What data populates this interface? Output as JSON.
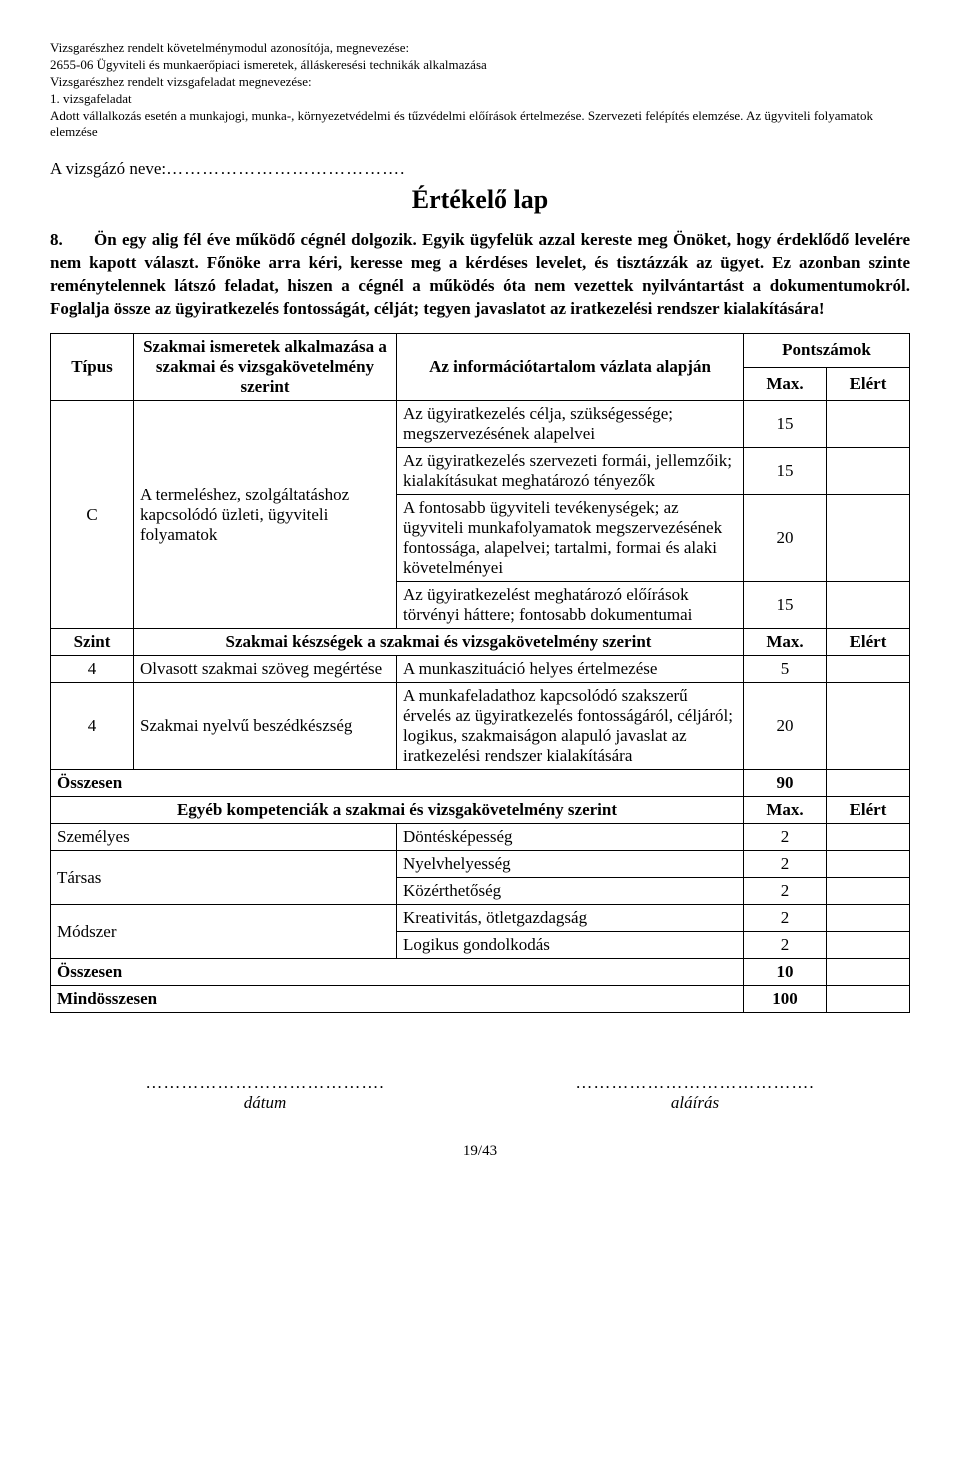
{
  "header": {
    "l1": "Vizsgarészhez rendelt követelménymodul azonosítója, megnevezése:",
    "l2": "2655-06 Ügyviteli és munkaerőpiaci ismeretek, álláskeresési technikák alkalmazása",
    "l3": "Vizsgarészhez rendelt vizsgafeladat megnevezése:",
    "l4": "1. vizsgafeladat",
    "l5": "Adott vállalkozás esetén a munkajogi, munka-, környezetvédelmi és tűzvédelmi előírások értelmezése. Szervezeti felépítés elemzése. Az ügyviteli folyamatok elemzése"
  },
  "examinee_label": "A vizsgázó neve:",
  "dots": "………………………………….",
  "title": "Értékelő lap",
  "question": {
    "num": "8.",
    "text": "Ön egy alig fél éve működő cégnél dolgozik. Egyik ügyfelük azzal kereste meg Önöket, hogy érdeklődő levelére nem kapott választ. Főnöke arra kéri, keresse meg a kérdéses levelet, és tisztázzák az ügyet. Ez azonban szinte reménytelennek látszó feladat, hiszen a cégnél a működés óta nem vezettek nyilvántartást a dokumentumokról. Foglalja össze az ügyiratkezelés fontosságát, célját; tegyen javaslatot az iratkezelési rendszer kialakítására!"
  },
  "table": {
    "head": {
      "type": "Típus",
      "skill": "Szakmai ismeretek alkalmazása a szakmai és vizsgakövetelmény szerint",
      "info": "Az információtartalom vázlata alapján",
      "points": "Pontszámok",
      "max": "Max.",
      "score": "Elért"
    },
    "knowledge": {
      "type": "C",
      "skill": "A termeléshez, szolgáltatáshoz kapcsolódó üzleti, ügyviteli folyamatok",
      "rows": [
        {
          "info": "Az ügyiratkezelés célja, szükségessége; megszervezésének alapelvei",
          "max": "15"
        },
        {
          "info": "Az ügyiratkezelés szervezeti formái, jellemzőik; kialakításukat meghatározó tényezők",
          "max": "15"
        },
        {
          "info": "A fontosabb ügyviteli tevékenységek; az ügyviteli munkafolyamatok megszervezésének fontossága, alapelvei; tartalmi, formai és alaki követelményei",
          "max": "20"
        },
        {
          "info": "Az ügyiratkezelést meghatározó előírások törvényi háttere; fontosabb dokumentumai",
          "max": "15"
        }
      ]
    },
    "skills_header": {
      "szint": "Szint",
      "label": "Szakmai készségek a szakmai és vizsgakövetelmény szerint",
      "max": "Max.",
      "score": "Elért"
    },
    "skills": [
      {
        "szint": "4",
        "skill": "Olvasott szakmai szöveg megértése",
        "info": "A munkaszituáció helyes értelmezése",
        "max": "5"
      },
      {
        "szint": "4",
        "skill": "Szakmai nyelvű beszédkészség",
        "info": "A munkafeladathoz kapcsolódó szakszerű érvelés az ügyiratkezelés fontosságáról, céljáról; logikus, szakmaiságon alapuló javaslat az iratkezelési rendszer kialakítására",
        "max": "20"
      }
    ],
    "sum1": {
      "label": "Összesen",
      "value": "90"
    },
    "other_header": {
      "label": "Egyéb kompetenciák a szakmai és vizsgakövetelmény szerint",
      "max": "Max.",
      "score": "Elért"
    },
    "other": [
      {
        "group": "Személyes",
        "item": "Döntésképesség",
        "max": "2"
      },
      {
        "group": "Társas",
        "items": [
          {
            "item": "Nyelvhelyesség",
            "max": "2"
          },
          {
            "item": "Közérthetőség",
            "max": "2"
          }
        ]
      },
      {
        "group": "Módszer",
        "items": [
          {
            "item": "Kreativitás, ötletgazdagság",
            "max": "2"
          },
          {
            "item": "Logikus gondolkodás",
            "max": "2"
          }
        ]
      }
    ],
    "sum2": {
      "label": "Összesen",
      "value": "10"
    },
    "total": {
      "label": "Mindösszesen",
      "value": "100"
    }
  },
  "signatures": {
    "dots": "………………………………….",
    "date": "dátum",
    "sign": "aláírás"
  },
  "pagenum": "19/43"
}
